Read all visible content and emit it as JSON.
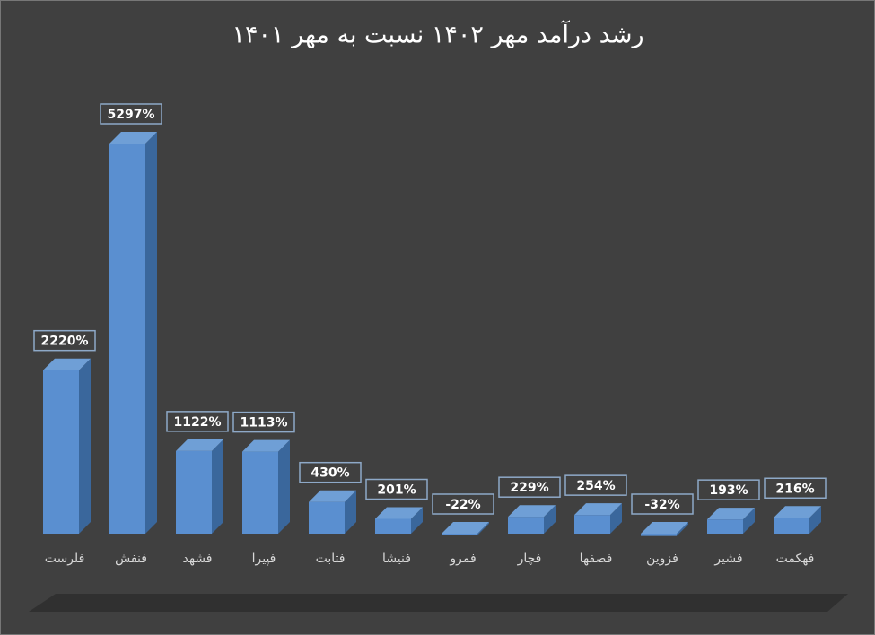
{
  "chart_data": {
    "type": "bar3d",
    "title": "رشد درآمد مهر ۱۴۰۲ نسبت به مهر ۱۴۰۱",
    "categories": [
      "فلرست",
      "فنفش",
      "فشهد",
      "فپیرا",
      "فثابت",
      "فنیشا",
      "فمرو",
      "فچار",
      "فصفها",
      "فزوین",
      "فشیر",
      "فهکمت"
    ],
    "values": [
      2220,
      5297,
      1122,
      1113,
      430,
      201,
      -22,
      229,
      254,
      -32,
      193,
      216
    ],
    "value_labels": [
      "2220%",
      "5297%",
      "1122%",
      "1113%",
      "430%",
      "201%",
      "-22%",
      "229%",
      "254%",
      "-32%",
      "193%",
      "216%"
    ],
    "color": "#4f81bd"
  }
}
